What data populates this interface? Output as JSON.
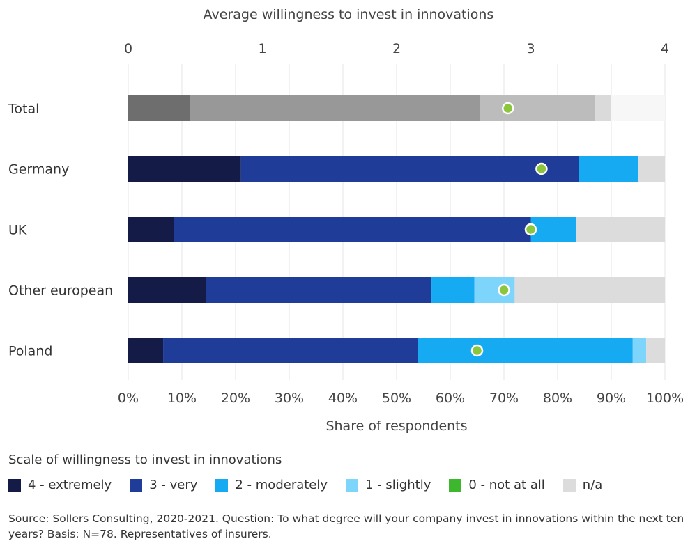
{
  "chart_data": {
    "type": "bar",
    "orientation": "horizontal",
    "stacked": true,
    "top_axis_title": "Average willingness to invest in innovations",
    "top_axis_ticks": [
      "0",
      "1",
      "2",
      "3",
      "4"
    ],
    "top_axis_range": [
      0,
      4
    ],
    "xlabel": "Share of respondents",
    "x_ticks": [
      "0%",
      "10%",
      "20%",
      "30%",
      "40%",
      "50%",
      "60%",
      "70%",
      "80%",
      "90%",
      "100%"
    ],
    "xlim": [
      0,
      100
    ],
    "categories": [
      "Total",
      "Germany",
      "UK",
      "Other european",
      "Poland"
    ],
    "series": [
      {
        "name": "4 - extremely",
        "color": "#141b47",
        "values": [
          11.5,
          21,
          8.5,
          14.5,
          6.5
        ]
      },
      {
        "name": "3 - very",
        "color": "#1f3c99",
        "values": [
          54,
          63,
          66.5,
          42,
          47.5
        ]
      },
      {
        "name": "2 - moderately",
        "color": "#15aaf2",
        "values": [
          21.5,
          11,
          8.5,
          8,
          40
        ]
      },
      {
        "name": "1 - slightly",
        "color": "#7dd5fb",
        "values": [
          3,
          0,
          0,
          7.5,
          2.5
        ]
      },
      {
        "name": "0 - not at all",
        "color": "#3db82e",
        "values": [
          0,
          0,
          0,
          0,
          0
        ]
      },
      {
        "name": "n/a",
        "color": "#dcdcdc",
        "values": [
          10,
          5,
          16.5,
          28,
          3.5
        ]
      }
    ],
    "total_row_colors": [
      "#6e6e6e",
      "#989898",
      "#bcbcbc",
      "#dadada",
      "#dcdcdc",
      "#f7f7f7"
    ],
    "averages": [
      2.83,
      3.08,
      3.0,
      2.8,
      2.6
    ],
    "average_marker_color": "#8cc63f",
    "legend_title": "Scale of willingness to invest in innovations",
    "legend_position": "bottom",
    "source": "Source: Sollers Consulting, 2020-2021. Question: To what degree will your company invest in innovations within the next ten years? Basis: N=78. Representatives of insurers."
  }
}
